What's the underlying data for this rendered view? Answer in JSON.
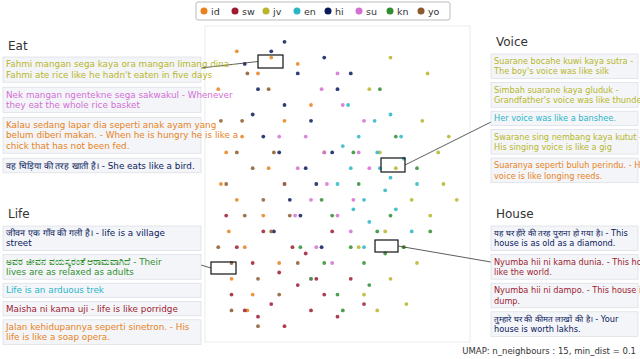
{
  "chart_data": {
    "type": "scatter",
    "legend": "top",
    "tick_labels": false,
    "xlim": [
      0,
      100
    ],
    "ylim": [
      0,
      100
    ],
    "caption": "UMAP: n_neighbours : 15, min_dist = 0.1",
    "series": [
      {
        "name": "id",
        "color": "#e8821c",
        "x": [
          5,
          8,
          12,
          15,
          20,
          25,
          30,
          10,
          18,
          6,
          14,
          22,
          35,
          40,
          28,
          9,
          16,
          45,
          12,
          24
        ],
        "values": [
          80,
          60,
          45,
          30,
          85,
          90,
          70,
          20,
          15,
          50,
          65,
          40,
          88,
          75,
          25,
          35,
          10,
          60,
          92,
          55
        ]
      },
      {
        "name": "sw",
        "color": "#9e1b32",
        "x": [
          10,
          15,
          20,
          25,
          30,
          35,
          40,
          45,
          18,
          28,
          38,
          50,
          55,
          12,
          22,
          33,
          42,
          8,
          60,
          48
        ],
        "values": [
          15,
          10,
          8,
          12,
          5,
          18,
          10,
          15,
          25,
          22,
          28,
          8,
          20,
          30,
          35,
          30,
          20,
          40,
          12,
          35
        ]
      },
      {
        "name": "jv",
        "color": "#b8b52a",
        "x": [
          60,
          65,
          70,
          75,
          80,
          85,
          90,
          68,
          78,
          88,
          72,
          82,
          62,
          92,
          58,
          76,
          84,
          66,
          95,
          70
        ],
        "values": [
          15,
          10,
          20,
          30,
          25,
          40,
          50,
          35,
          45,
          60,
          55,
          70,
          80,
          65,
          30,
          12,
          85,
          60,
          45,
          90
        ]
      },
      {
        "name": "en",
        "color": "#2bb6c8",
        "x": [
          50,
          55,
          60,
          65,
          70,
          75,
          58,
          62,
          68,
          72,
          52,
          80,
          64,
          56,
          74,
          66,
          60,
          78,
          54,
          70
        ],
        "values": [
          50,
          55,
          45,
          60,
          52,
          58,
          65,
          38,
          48,
          42,
          62,
          50,
          70,
          42,
          65,
          55,
          30,
          35,
          75,
          72
        ]
      },
      {
        "name": "hi",
        "color": "#0b1a5e",
        "x": [
          15,
          20,
          25,
          30,
          35,
          40,
          45,
          22,
          28,
          38,
          18,
          32,
          42,
          50,
          26,
          36,
          48,
          55,
          30,
          44
        ],
        "values": [
          88,
          80,
          92,
          75,
          85,
          70,
          90,
          65,
          60,
          55,
          72,
          45,
          50,
          80,
          35,
          40,
          60,
          85,
          95,
          30
        ]
      },
      {
        "name": "su",
        "color": "#d46fd6",
        "x": [
          30,
          35,
          40,
          45,
          50,
          55,
          60,
          38,
          42,
          48,
          52,
          58,
          34,
          46,
          62,
          28,
          44,
          56,
          40,
          50
        ],
        "values": [
          50,
          55,
          45,
          60,
          40,
          35,
          70,
          65,
          30,
          25,
          75,
          60,
          40,
          50,
          55,
          65,
          80,
          45,
          20,
          85
        ]
      },
      {
        "name": "kn",
        "color": "#2f8f2f",
        "x": [
          40,
          45,
          50,
          55,
          60,
          65,
          70,
          48,
          52,
          58,
          62,
          75,
          80,
          44,
          56,
          68,
          85,
          72,
          36,
          66
        ],
        "values": [
          20,
          25,
          15,
          30,
          25,
          35,
          40,
          40,
          10,
          50,
          18,
          30,
          55,
          45,
          60,
          28,
          35,
          65,
          30,
          80
        ]
      },
      {
        "name": "yo",
        "color": "#8b5a2b",
        "x": [
          5,
          10,
          15,
          20,
          25,
          8,
          12,
          18,
          22,
          28,
          32,
          14,
          6,
          26,
          35,
          20,
          16,
          30,
          10,
          24
        ],
        "values": [
          30,
          25,
          40,
          20,
          35,
          50,
          60,
          55,
          45,
          15,
          40,
          70,
          70,
          60,
          25,
          5,
          85,
          50,
          10,
          80
        ]
      }
    ],
    "annotations": [
      {
        "title": "Eat",
        "items": [
          {
            "lang": "jv",
            "lines": [
              "Fahmi mangan sega kaya ora mangan limang dina -",
              "Fahmi ate rice like he hadn't eaten in five days"
            ]
          },
          {
            "lang": "su",
            "lines": [
              "Nek mangan ngentekne sega sakwakul - Whenever",
              "they eat the whole rice basket"
            ]
          },
          {
            "lang": "id",
            "lines": [
              "Kalau sedang lapar dia seperti anak ayam yang",
              "belum diberi makan. - When he is hungry he is like a",
              "chick that has not been fed."
            ]
          },
          {
            "lang": "hi",
            "lines": [
              "वह चिड़िया की तरह खाती है। - She eats like a bird."
            ]
          }
        ]
      },
      {
        "title": "Voice",
        "items": [
          {
            "lang": "jv",
            "lines": [
              "Suarane bocahe kuwi kaya sutra -",
              "The boy's voice was like silk"
            ]
          },
          {
            "lang": "jv",
            "lines": [
              "Simbah suarane kaya gluduk -",
              "Grandfather's voice was like thunder"
            ]
          },
          {
            "lang": "en",
            "lines": [
              "Her voice was like a banshee."
            ]
          },
          {
            "lang": "jv",
            "lines": [
              "Swarane sing nembang kaya kutut -",
              "His singing voice is like a gig"
            ]
          },
          {
            "lang": "id",
            "lines": [
              "Suaranya seperti buluh perindu. - His",
              "voice is like longing reeds."
            ]
          }
        ]
      },
      {
        "title": "Life",
        "items": [
          {
            "lang": "hi",
            "lines": [
              "जीवन एक गाँव की गली है। - life is a village",
              "street"
            ]
          },
          {
            "lang": "kn",
            "lines": [
              "ಅವರ ಜೀವನ ವಯಸ್ಕರಂತೆ ಆರಾಮವಾಗಿದೆ - Their",
              "lives are as relaxed as adults"
            ]
          },
          {
            "lang": "en",
            "lines": [
              "Life is an arduous trek"
            ]
          },
          {
            "lang": "sw",
            "lines": [
              "Maisha ni kama uji - life is like porridge"
            ]
          },
          {
            "lang": "id",
            "lines": [
              "Jalan kehidupannya seperti sinetron. - His",
              "life is like a soap opera."
            ]
          }
        ]
      },
      {
        "title": "House",
        "items": [
          {
            "lang": "hi",
            "lines": [
              "यह घर हीरे की तरह पुराना हो गया है। - This",
              "house is as old as a diamond."
            ]
          },
          {
            "lang": "sw",
            "lines": [
              "Nyumba hii ni kama dunia. - This house is",
              "like the world."
            ]
          },
          {
            "lang": "sw",
            "lines": [
              "Nyumba hii ni dampo. - This house is a",
              "dump."
            ]
          },
          {
            "lang": "hi",
            "lines": [
              "तुम्हारे घर की कीमत लाखों की है। - Your",
              "house is worth lakhs."
            ]
          }
        ]
      }
    ]
  }
}
